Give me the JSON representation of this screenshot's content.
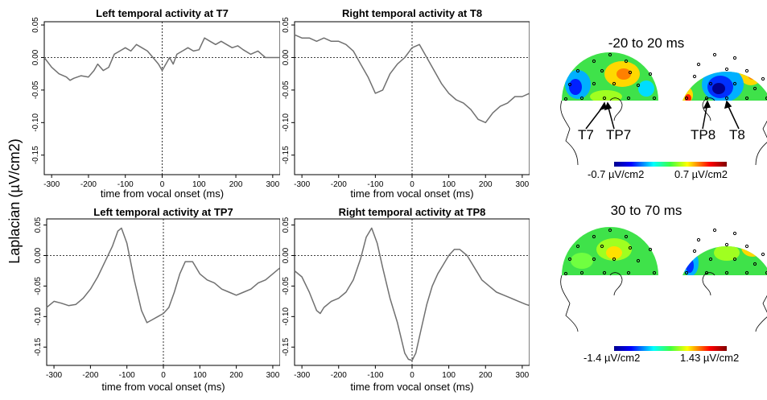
{
  "ylabel": "Laplacian (µV/cm2)",
  "chart_data": [
    {
      "type": "line",
      "title": "Left temporal activity at T7",
      "xlabel": "time from vocal onset (ms)",
      "xlim": [
        -320,
        320
      ],
      "ylim": [
        0.055,
        -0.18
      ],
      "xticks": [
        -300,
        -200,
        -100,
        0,
        100,
        200,
        300
      ],
      "yticks": [
        0.05,
        0.0,
        -0.05,
        -0.1,
        -0.15
      ],
      "ytick_labels": [
        "0.05",
        "0.00",
        "-0.05",
        "-0.10",
        "-0.15"
      ],
      "x": [
        -320,
        -300,
        -280,
        -260,
        -250,
        -240,
        -230,
        -220,
        -200,
        -185,
        -175,
        -160,
        -145,
        -130,
        -115,
        -100,
        -85,
        -70,
        -55,
        -40,
        -25,
        -10,
        0,
        10,
        20,
        30,
        40,
        55,
        70,
        85,
        100,
        115,
        130,
        145,
        160,
        175,
        190,
        205,
        220,
        240,
        260,
        280,
        300,
        320
      ],
      "series": [
        {
          "values": [
            0.0,
            -0.015,
            -0.025,
            -0.03,
            -0.035,
            -0.032,
            -0.03,
            -0.028,
            -0.03,
            -0.02,
            -0.01,
            -0.02,
            -0.015,
            0.005,
            0.01,
            0.015,
            0.01,
            0.02,
            0.015,
            0.01,
            0.0,
            -0.01,
            -0.02,
            -0.01,
            0.0,
            -0.01,
            0.005,
            0.01,
            0.015,
            0.01,
            0.012,
            0.03,
            0.025,
            0.02,
            0.025,
            0.02,
            0.015,
            0.018,
            0.012,
            0.005,
            0.01,
            0.0,
            0.0,
            0.0
          ]
        }
      ]
    },
    {
      "type": "line",
      "title": "Right temporal activity at T8",
      "xlabel": "time from vocal onset (ms)",
      "xlim": [
        -320,
        320
      ],
      "ylim": [
        0.055,
        -0.18
      ],
      "xticks": [
        -300,
        -200,
        -100,
        0,
        100,
        200,
        300
      ],
      "yticks": [
        0.05,
        0.0,
        -0.05,
        -0.1,
        -0.15
      ],
      "ytick_labels": [
        "0.05",
        "0.00",
        "-0.05",
        "-0.10",
        "-0.15"
      ],
      "x": [
        -320,
        -300,
        -280,
        -260,
        -240,
        -220,
        -200,
        -180,
        -160,
        -140,
        -120,
        -100,
        -80,
        -60,
        -40,
        -20,
        0,
        20,
        40,
        60,
        80,
        100,
        120,
        140,
        160,
        180,
        200,
        220,
        240,
        260,
        280,
        300,
        320
      ],
      "series": [
        {
          "values": [
            0.035,
            0.03,
            0.03,
            0.025,
            0.03,
            0.025,
            0.025,
            0.02,
            0.01,
            -0.01,
            -0.03,
            -0.055,
            -0.05,
            -0.025,
            -0.01,
            0.0,
            0.015,
            0.02,
            0.0,
            -0.02,
            -0.04,
            -0.055,
            -0.065,
            -0.07,
            -0.08,
            -0.095,
            -0.1,
            -0.085,
            -0.075,
            -0.07,
            -0.06,
            -0.06,
            -0.055
          ]
        }
      ]
    },
    {
      "type": "line",
      "title": "Left temporal activity at TP7",
      "xlabel": "time from vocal onset (ms)",
      "xlim": [
        -320,
        320
      ],
      "ylim": [
        0.06,
        -0.18
      ],
      "xticks": [
        -300,
        -200,
        -100,
        0,
        100,
        200,
        300
      ],
      "yticks": [
        0.05,
        0.0,
        -0.05,
        -0.1,
        -0.15
      ],
      "ytick_labels": [
        "0.05",
        "0.00",
        "-0.05",
        "-0.10",
        "-0.15"
      ],
      "x": [
        -320,
        -300,
        -280,
        -260,
        -240,
        -220,
        -200,
        -180,
        -160,
        -140,
        -125,
        -115,
        -100,
        -80,
        -60,
        -45,
        -30,
        -15,
        0,
        15,
        30,
        45,
        60,
        80,
        100,
        120,
        140,
        160,
        180,
        200,
        220,
        240,
        260,
        280,
        300,
        320
      ],
      "series": [
        {
          "values": [
            -0.085,
            -0.075,
            -0.078,
            -0.082,
            -0.08,
            -0.07,
            -0.055,
            -0.035,
            -0.01,
            0.015,
            0.04,
            0.045,
            0.02,
            -0.04,
            -0.09,
            -0.11,
            -0.105,
            -0.1,
            -0.095,
            -0.085,
            -0.06,
            -0.03,
            -0.01,
            -0.01,
            -0.03,
            -0.04,
            -0.045,
            -0.055,
            -0.06,
            -0.065,
            -0.06,
            -0.055,
            -0.045,
            -0.04,
            -0.03,
            -0.02
          ]
        }
      ]
    },
    {
      "type": "line",
      "title": "Right temporal activity at TP8",
      "xlabel": "time from vocal onset (ms)",
      "xlim": [
        -320,
        320
      ],
      "ylim": [
        0.06,
        -0.18
      ],
      "xticks": [
        -300,
        -200,
        -100,
        0,
        100,
        200,
        300
      ],
      "yticks": [
        0.05,
        0.0,
        -0.05,
        -0.1,
        -0.15
      ],
      "ytick_labels": [
        "0.05",
        "0.00",
        "-0.05",
        "-0.10",
        "-0.15"
      ],
      "x": [
        -320,
        -300,
        -280,
        -260,
        -250,
        -240,
        -220,
        -200,
        -180,
        -160,
        -140,
        -125,
        -110,
        -95,
        -80,
        -60,
        -40,
        -20,
        -10,
        0,
        10,
        25,
        40,
        55,
        70,
        85,
        100,
        115,
        130,
        150,
        170,
        190,
        210,
        230,
        250,
        270,
        290,
        310,
        320
      ],
      "series": [
        {
          "values": [
            -0.025,
            -0.035,
            -0.06,
            -0.09,
            -0.095,
            -0.085,
            -0.075,
            -0.07,
            -0.06,
            -0.04,
            -0.005,
            0.03,
            0.045,
            0.02,
            -0.02,
            -0.07,
            -0.11,
            -0.16,
            -0.17,
            -0.172,
            -0.16,
            -0.12,
            -0.08,
            -0.05,
            -0.03,
            -0.015,
            0.0,
            0.01,
            0.01,
            0.0,
            -0.02,
            -0.04,
            -0.05,
            -0.06,
            -0.065,
            -0.07,
            -0.075,
            -0.08,
            -0.082
          ]
        }
      ]
    }
  ],
  "topomaps": [
    {
      "title": "-20 to 20 ms",
      "colorbar": {
        "min_label": "-0.7 µV/cm2",
        "max_label": "0.7 µV/cm2"
      },
      "electrodes_left": [
        "T7",
        "TP7"
      ],
      "electrodes_right": [
        "TP8",
        "T8"
      ]
    },
    {
      "title": "30 to 70 ms",
      "colorbar": {
        "min_label": "-1.4 µV/cm2",
        "max_label": "1.43 µV/cm2"
      }
    }
  ],
  "colors": {
    "trace": "#707070",
    "axis": "#000000"
  }
}
